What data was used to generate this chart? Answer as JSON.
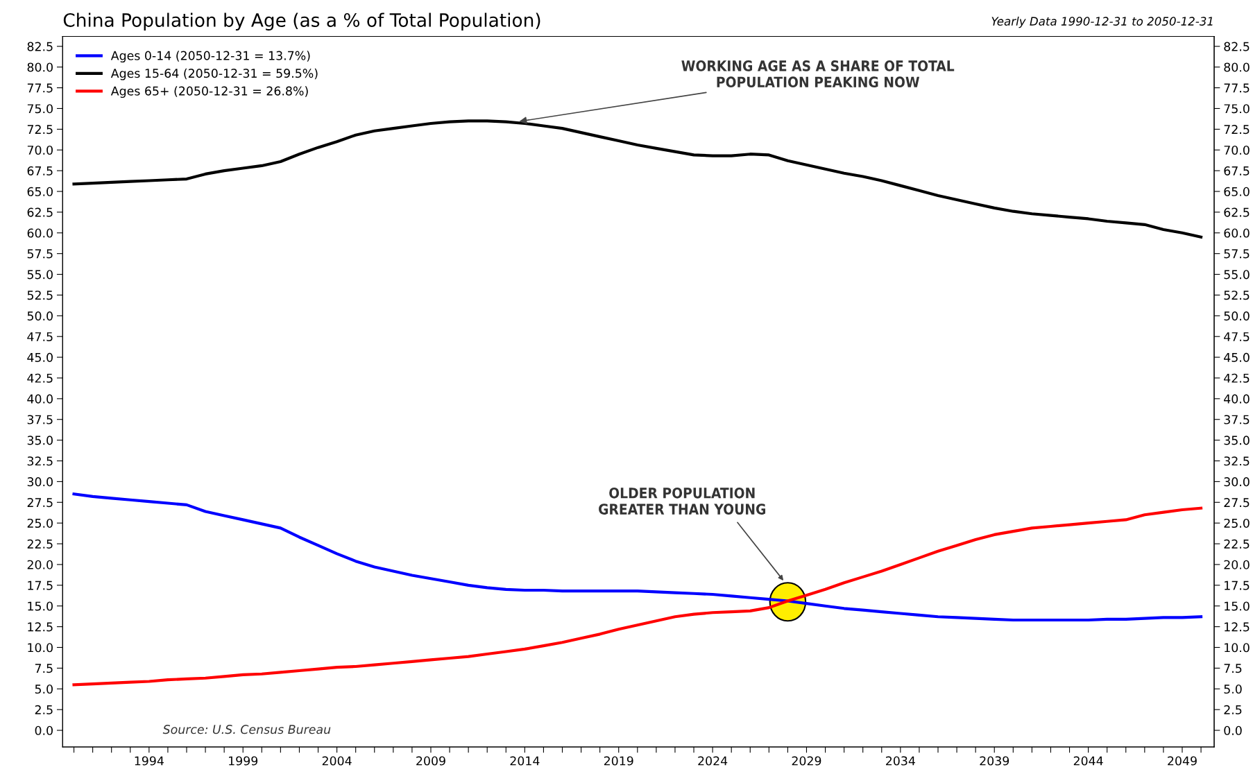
{
  "chart_data": {
    "type": "line",
    "title": "China Population by Age (as a % of Total Population)",
    "subtitle": "Yearly Data 1990-12-31 to 2050-12-31",
    "x": [
      1990,
      1991,
      1992,
      1993,
      1994,
      1995,
      1996,
      1997,
      1998,
      1999,
      2000,
      2001,
      2002,
      2003,
      2004,
      2005,
      2006,
      2007,
      2008,
      2009,
      2010,
      2011,
      2012,
      2013,
      2014,
      2015,
      2016,
      2017,
      2018,
      2019,
      2020,
      2021,
      2022,
      2023,
      2024,
      2025,
      2026,
      2027,
      2028,
      2029,
      2030,
      2031,
      2032,
      2033,
      2034,
      2035,
      2036,
      2037,
      2038,
      2039,
      2040,
      2041,
      2042,
      2043,
      2044,
      2045,
      2046,
      2047,
      2048,
      2049,
      2050
    ],
    "series": [
      {
        "name": "Ages 0-14 (2050-12-31 = 13.7%)",
        "color": "#0000ff",
        "values": [
          28.5,
          28.2,
          28.0,
          27.8,
          27.6,
          27.4,
          27.2,
          26.4,
          25.9,
          25.4,
          24.9,
          24.4,
          23.3,
          22.3,
          21.3,
          20.4,
          19.7,
          19.2,
          18.7,
          18.3,
          17.9,
          17.5,
          17.2,
          17.0,
          16.9,
          16.9,
          16.8,
          16.8,
          16.8,
          16.8,
          16.8,
          16.7,
          16.6,
          16.5,
          16.4,
          16.2,
          16.0,
          15.8,
          15.6,
          15.3,
          15.0,
          14.7,
          14.5,
          14.3,
          14.1,
          13.9,
          13.7,
          13.6,
          13.5,
          13.4,
          13.3,
          13.3,
          13.3,
          13.3,
          13.3,
          13.4,
          13.4,
          13.5,
          13.6,
          13.6,
          13.7
        ]
      },
      {
        "name": "Ages 15-64 (2050-12-31 = 59.5%)",
        "color": "#000000",
        "values": [
          65.9,
          66.0,
          66.1,
          66.2,
          66.3,
          66.4,
          66.5,
          67.1,
          67.5,
          67.8,
          68.1,
          68.6,
          69.5,
          70.3,
          71.0,
          71.8,
          72.3,
          72.6,
          72.9,
          73.2,
          73.4,
          73.5,
          73.5,
          73.4,
          73.2,
          72.9,
          72.6,
          72.1,
          71.6,
          71.1,
          70.6,
          70.2,
          69.8,
          69.4,
          69.3,
          69.3,
          69.5,
          69.4,
          68.7,
          68.2,
          67.7,
          67.2,
          66.8,
          66.3,
          65.7,
          65.1,
          64.5,
          64.0,
          63.5,
          63.0,
          62.6,
          62.3,
          62.1,
          61.9,
          61.7,
          61.4,
          61.2,
          61.0,
          60.4,
          60.0,
          59.5
        ]
      },
      {
        "name": "Ages 65+ (2050-12-31 = 26.8%)",
        "color": "#ff0000",
        "values": [
          5.5,
          5.6,
          5.7,
          5.8,
          5.9,
          6.1,
          6.2,
          6.3,
          6.5,
          6.7,
          6.8,
          7.0,
          7.2,
          7.4,
          7.6,
          7.7,
          7.9,
          8.1,
          8.3,
          8.5,
          8.7,
          8.9,
          9.2,
          9.5,
          9.8,
          10.2,
          10.6,
          11.1,
          11.6,
          12.2,
          12.7,
          13.2,
          13.7,
          14.0,
          14.2,
          14.3,
          14.4,
          14.8,
          15.6,
          16.3,
          17.0,
          17.8,
          18.5,
          19.2,
          20.0,
          20.8,
          21.6,
          22.3,
          23.0,
          23.6,
          24.0,
          24.4,
          24.6,
          24.8,
          25.0,
          25.2,
          25.4,
          26.0,
          26.3,
          26.6,
          26.8
        ]
      }
    ],
    "xlim": [
      1989.4,
      2050.7
    ],
    "xticks": [
      {
        "value": 1990,
        "label": null
      },
      {
        "value": 1991,
        "label": null
      },
      {
        "value": 1992,
        "label": null
      },
      {
        "value": 1993,
        "label": null
      },
      1994,
      {
        "value": 1995,
        "label": null
      },
      {
        "value": 1996,
        "label": null
      },
      {
        "value": 1997,
        "label": null
      },
      {
        "value": 1998,
        "label": null
      },
      1999,
      {
        "value": 2000,
        "label": null
      },
      {
        "value": 2001,
        "label": null
      },
      {
        "value": 2002,
        "label": null
      },
      {
        "value": 2003,
        "label": null
      },
      2004,
      {
        "value": 2005,
        "label": null
      },
      {
        "value": 2006,
        "label": null
      },
      {
        "value": 2007,
        "label": null
      },
      {
        "value": 2008,
        "label": null
      },
      2009,
      {
        "value": 2010,
        "label": null
      },
      {
        "value": 2011,
        "label": null
      },
      {
        "value": 2012,
        "label": null
      },
      {
        "value": 2013,
        "label": null
      },
      2014,
      {
        "value": 2015,
        "label": null
      },
      {
        "value": 2016,
        "label": null
      },
      {
        "value": 2017,
        "label": null
      },
      {
        "value": 2018,
        "label": null
      },
      2019,
      {
        "value": 2020,
        "label": null
      },
      {
        "value": 2021,
        "label": null
      },
      {
        "value": 2022,
        "label": null
      },
      {
        "value": 2023,
        "label": null
      },
      2024,
      {
        "value": 2025,
        "label": null
      },
      {
        "value": 2026,
        "label": null
      },
      {
        "value": 2027,
        "label": null
      },
      {
        "value": 2028,
        "label": null
      },
      2029,
      {
        "value": 2030,
        "label": null
      },
      {
        "value": 2031,
        "label": null
      },
      {
        "value": 2032,
        "label": null
      },
      {
        "value": 2033,
        "label": null
      },
      2034,
      {
        "value": 2035,
        "label": null
      },
      {
        "value": 2036,
        "label": null
      },
      {
        "value": 2037,
        "label": null
      },
      {
        "value": 2038,
        "label": null
      },
      2039,
      {
        "value": 2040,
        "label": null
      },
      {
        "value": 2041,
        "label": null
      },
      {
        "value": 2042,
        "label": null
      },
      {
        "value": 2043,
        "label": null
      },
      2044,
      {
        "value": 2045,
        "label": null
      },
      {
        "value": 2046,
        "label": null
      },
      {
        "value": 2047,
        "label": null
      },
      {
        "value": 2048,
        "label": null
      },
      2049,
      {
        "value": 2050,
        "label": null
      }
    ],
    "ylim": [
      -2.0,
      83.7
    ],
    "yticks": [
      {
        "value": 0,
        "label": "0.0"
      },
      2.5,
      {
        "value": 5,
        "label": "5.0"
      },
      7.5,
      {
        "value": 10,
        "label": "10.0"
      },
      12.5,
      {
        "value": 15,
        "label": "15.0"
      },
      17.5,
      {
        "value": 20,
        "label": "20.0"
      },
      22.5,
      {
        "value": 25,
        "label": "25.0"
      },
      27.5,
      {
        "value": 30,
        "label": "30.0"
      },
      32.5,
      {
        "value": 35,
        "label": "35.0"
      },
      37.5,
      {
        "value": 40,
        "label": "40.0"
      },
      42.5,
      {
        "value": 45,
        "label": "45.0"
      },
      47.5,
      {
        "value": 50,
        "label": "50.0"
      },
      52.5,
      {
        "value": 55,
        "label": "55.0"
      },
      57.5,
      {
        "value": 60,
        "label": "60.0"
      },
      62.5,
      {
        "value": 65,
        "label": "65.0"
      },
      67.5,
      {
        "value": 70,
        "label": "70.0"
      },
      72.5,
      {
        "value": 75,
        "label": "75.0"
      },
      77.5,
      {
        "value": 80,
        "label": "80.0"
      },
      82.5
    ],
    "y2lim": [
      -2.0,
      83.7
    ],
    "y2ticks": [
      {
        "value": 0,
        "label": "0.0"
      },
      2.5,
      {
        "value": 5,
        "label": "5.0"
      },
      7.5,
      {
        "value": 10,
        "label": "10.0"
      },
      12.5,
      {
        "value": 15,
        "label": "15.0"
      },
      17.5,
      {
        "value": 20,
        "label": "20.0"
      },
      22.5,
      {
        "value": 25,
        "label": "25.0"
      },
      27.5,
      {
        "value": 30,
        "label": "30.0"
      },
      32.5,
      {
        "value": 35,
        "label": "35.0"
      },
      37.5,
      {
        "value": 40,
        "label": "40.0"
      },
      42.5,
      {
        "value": 45,
        "label": "45.0"
      },
      47.5,
      {
        "value": 50,
        "label": "50.0"
      },
      52.5,
      {
        "value": 55,
        "label": "55.0"
      },
      57.5,
      {
        "value": 60,
        "label": "60.0"
      },
      62.5,
      {
        "value": 65,
        "label": "65.0"
      },
      67.5,
      {
        "value": 70,
        "label": "70.0"
      },
      72.5,
      {
        "value": 75,
        "label": "75.0"
      },
      77.5,
      {
        "value": 80,
        "label": "80.0"
      },
      82.5
    ],
    "annotations": [
      {
        "text": "WORKING AGE AS A SHARE OF TOTAL\nPOPULATION PEAKING NOW",
        "x": 2013.6,
        "y": 73.4
      },
      "OLDER POPULATION\nGREATER THAN YOUNG",
      "Source: U.S. Census Bureau"
    ],
    "grid": false,
    "legend": "top left",
    "marker": "none",
    "line_style": "solid"
  }
}
